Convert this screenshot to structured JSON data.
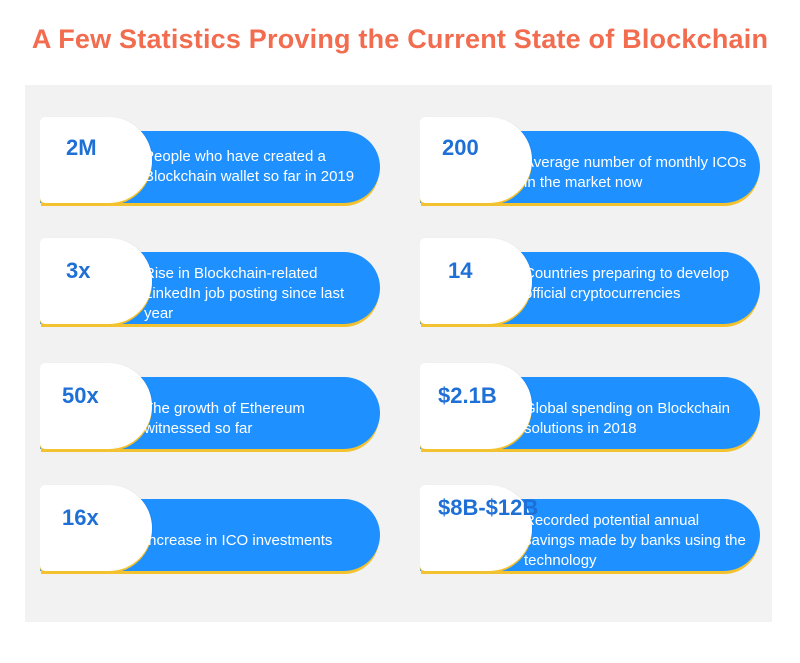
{
  "title": "A Few Statistics Proving the Current State of Blockchain",
  "stats": [
    {
      "value": "2M",
      "text": "People who have created a Blockchain wallet so far in 2019"
    },
    {
      "value": "200",
      "text": "Average number of monthly ICOs in the market now"
    },
    {
      "value": "3x",
      "text": "Rise in Blockchain-related LinkedIn job posting since last year"
    },
    {
      "value": "14",
      "text": "Countries preparing to develop official cryptocurrencies"
    },
    {
      "value": "50x",
      "text": "The growth of Ethereum witnessed so far"
    },
    {
      "value": "$2.1B",
      "text": "Global spending on Blockchain solutions in 2018"
    },
    {
      "value": "16x",
      "text": "Increase in ICO investments"
    },
    {
      "value": "$8B-$12B",
      "text": "Recorded potential annual savings made by banks using the technology"
    }
  ],
  "colors": {
    "title": "#f26c4f",
    "panel": "#f2f2f2",
    "pill": "#1e90ff",
    "stat_text": "#1e6fd6",
    "accent": "#f2c230"
  }
}
